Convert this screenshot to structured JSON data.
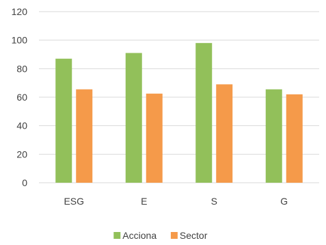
{
  "chart_data": {
    "type": "bar",
    "categories": [
      "ESG",
      "E",
      "S",
      "G"
    ],
    "series": [
      {
        "name": "Acciona",
        "color": "#92c05a",
        "values": [
          87,
          91,
          98,
          65.5
        ]
      },
      {
        "name": "Sector",
        "color": "#f59a4a",
        "values": [
          65.5,
          62.5,
          69,
          62
        ]
      }
    ],
    "title": "",
    "xlabel": "",
    "ylabel": "",
    "ylim": [
      0,
      120
    ],
    "yticks": [
      0,
      20,
      40,
      60,
      80,
      100,
      120
    ],
    "grid": true,
    "legend": "bottom-center"
  }
}
